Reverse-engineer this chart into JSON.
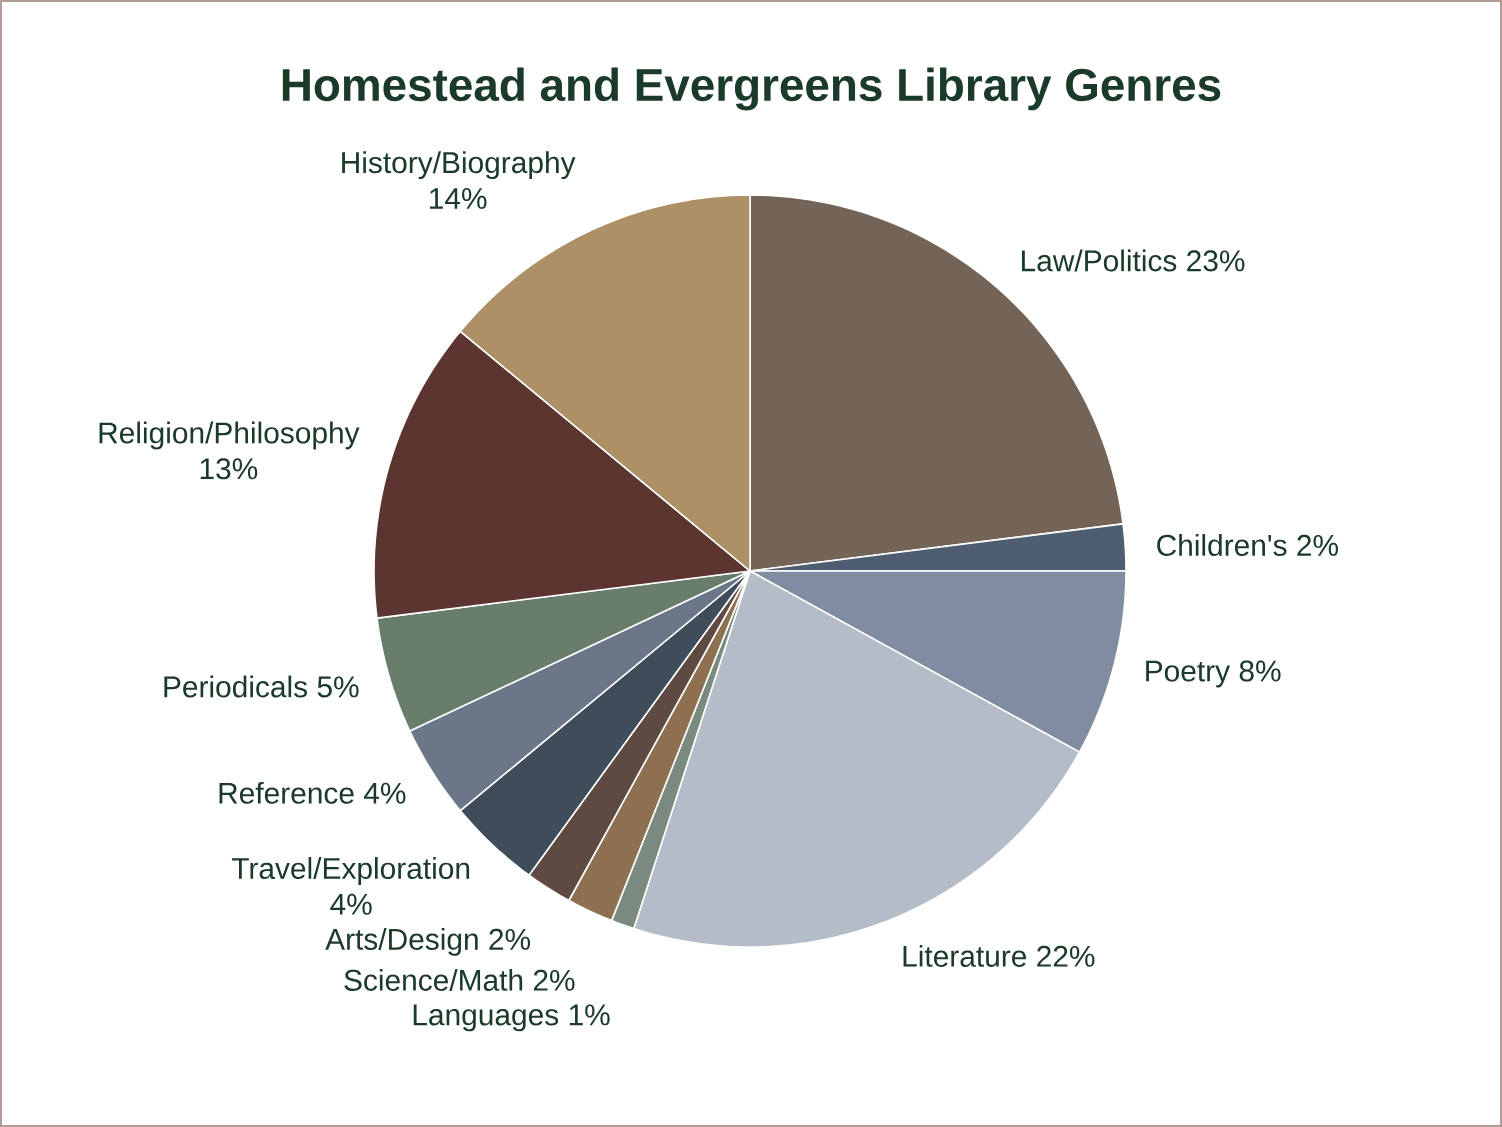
{
  "chart_data": {
    "type": "pie",
    "title": "Homestead and Evergreens Library Genres",
    "categories": [
      "Law/Politics",
      "Children's",
      "Poetry",
      "Literature",
      "Languages",
      "Science/Math",
      "Arts/Design",
      "Travel/Exploration",
      "Reference",
      "Periodicals",
      "Religion/Philosophy",
      "History/Biography"
    ],
    "values": [
      23,
      2,
      8,
      22,
      1,
      2,
      2,
      4,
      4,
      5,
      13,
      14
    ],
    "value_labels": [
      "23%",
      "2%",
      "8%",
      "22%",
      "1%",
      "2%",
      "2%",
      "4%",
      "4%",
      "5%",
      "13%",
      "14%"
    ],
    "colors": [
      "#746357",
      "#4f5d70",
      "#808c9f",
      "#b4bcc7",
      "#7b8a7e",
      "#8c7050",
      "#5e4a40",
      "#3f4c5a",
      "#6b7789",
      "#687d6c",
      "#5c3530",
      "#ad9066"
    ]
  }
}
